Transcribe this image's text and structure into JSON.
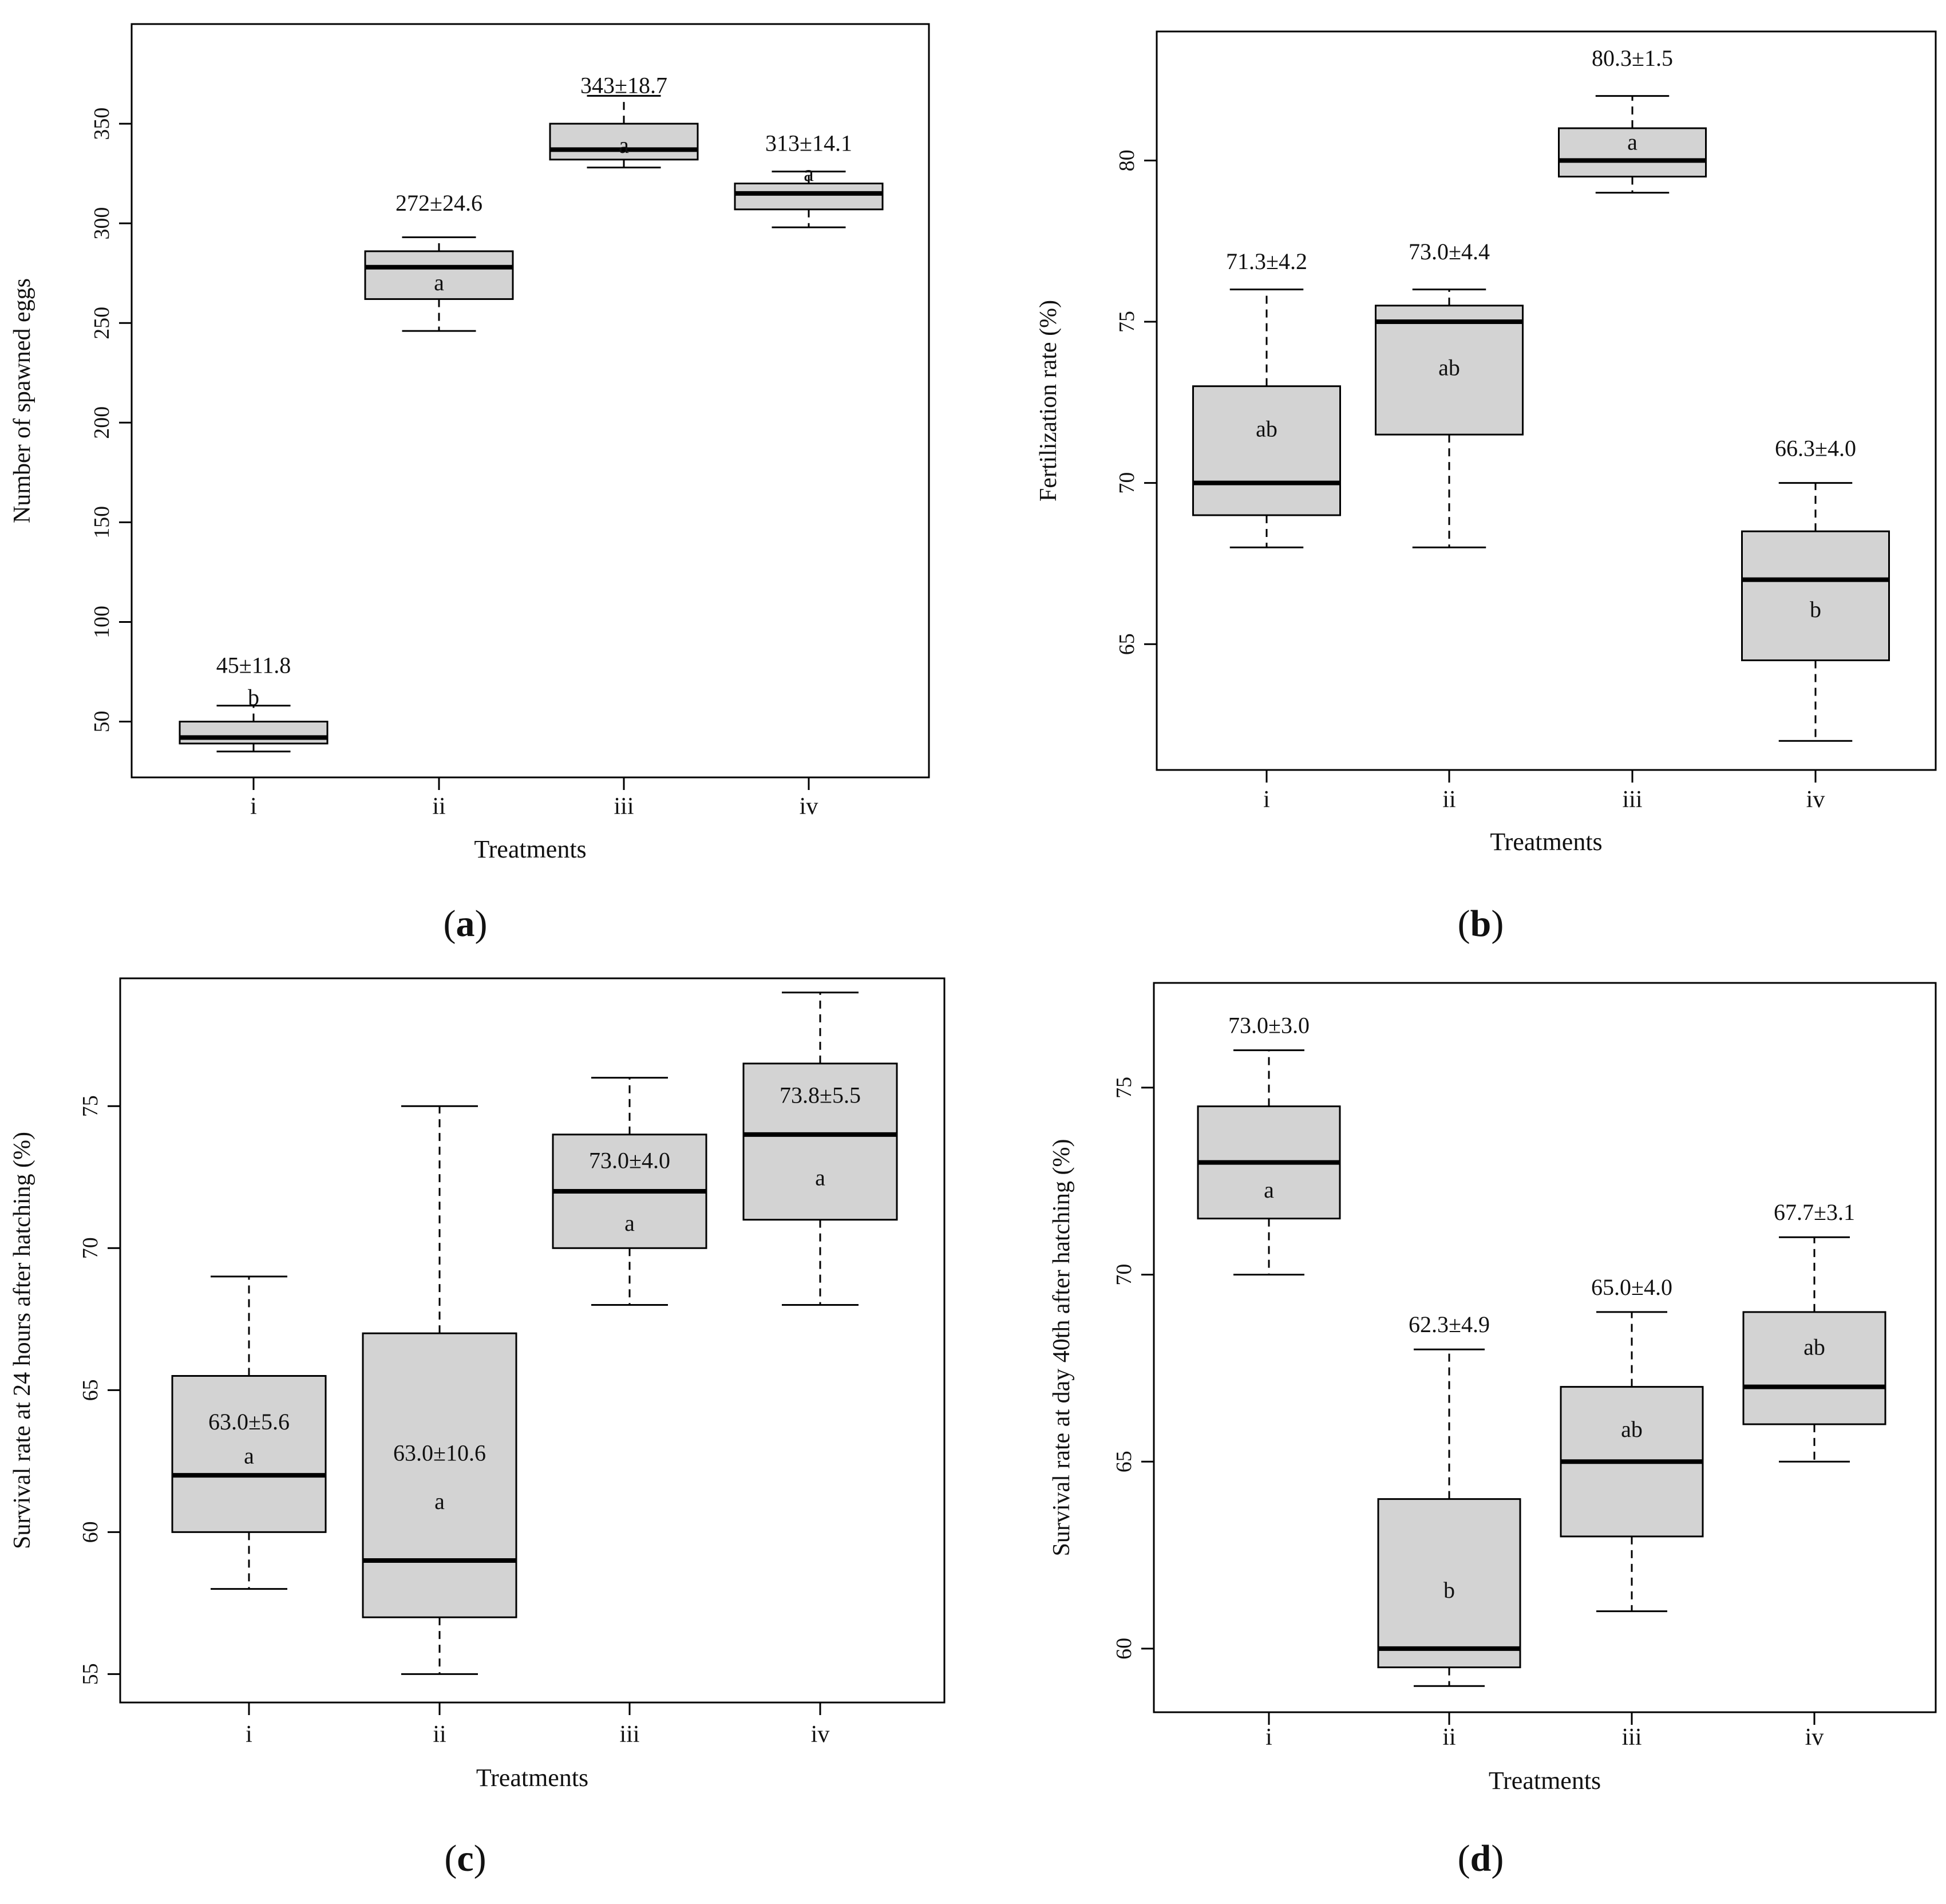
{
  "figure": {
    "panels": [
      {
        "panel_label": "(a)",
        "panel_letter": "a",
        "chart_data": {
          "type": "box",
          "xlabel": "Treatments",
          "ylabel": "Number of spawned eggs",
          "categories": [
            "i",
            "ii",
            "iii",
            "iv"
          ],
          "ylim": [
            22,
            400
          ],
          "yticks": [
            50,
            100,
            150,
            200,
            250,
            300,
            350
          ],
          "boxes": [
            {
              "category": "i",
              "whisker_low": 35,
              "q1": 39,
              "median": 42,
              "q3": 50,
              "whisker_high": 58,
              "mean_sd": "45±11.8",
              "letter": "b",
              "mean_sd_at": 77,
              "letter_at": 61
            },
            {
              "category": "ii",
              "whisker_low": 246,
              "q1": 262,
              "median": 278,
              "q3": 286,
              "whisker_high": 293,
              "mean_sd": "272±24.6",
              "letter": "a",
              "mean_sd_at": 309,
              "letter_at": 269
            },
            {
              "category": "iii",
              "whisker_low": 328,
              "q1": 332,
              "median": 337,
              "q3": 350,
              "whisker_high": 364,
              "mean_sd": "343±18.7",
              "letter": "a",
              "mean_sd_at": 368,
              "letter_at": 338
            },
            {
              "category": "iv",
              "whisker_low": 298,
              "q1": 307,
              "median": 315,
              "q3": 320,
              "whisker_high": 326,
              "mean_sd": "313±14.1",
              "letter": "a",
              "mean_sd_at": 339,
              "letter_at": 324
            }
          ]
        }
      },
      {
        "panel_label": "(b)",
        "panel_letter": "b",
        "chart_data": {
          "type": "box",
          "xlabel": "Treatments",
          "ylabel": "Fertilization rate (%)",
          "categories": [
            "i",
            "ii",
            "iii",
            "iv"
          ],
          "ylim": [
            61.1,
            84
          ],
          "yticks": [
            65,
            70,
            75,
            80
          ],
          "boxes": [
            {
              "category": "i",
              "whisker_low": 68,
              "q1": 69,
              "median": 70,
              "q3": 73,
              "whisker_high": 76,
              "mean_sd": "71.3±4.2",
              "letter": "ab",
              "mean_sd_at": 76.8,
              "letter_at": 71.6
            },
            {
              "category": "ii",
              "whisker_low": 68,
              "q1": 71.5,
              "median": 75,
              "q3": 75.5,
              "whisker_high": 76,
              "mean_sd": "73.0±4.4",
              "letter": "ab",
              "mean_sd_at": 77.1,
              "letter_at": 73.5
            },
            {
              "category": "iii",
              "whisker_low": 79,
              "q1": 79.5,
              "median": 80,
              "q3": 81,
              "whisker_high": 82,
              "mean_sd": "80.3±1.5",
              "letter": "a",
              "mean_sd_at": 83.1,
              "letter_at": 80.5
            },
            {
              "category": "iv",
              "whisker_low": 62,
              "q1": 64.5,
              "median": 67,
              "q3": 68.5,
              "whisker_high": 70,
              "mean_sd": "66.3±4.0",
              "letter": "b",
              "mean_sd_at": 71.0,
              "letter_at": 66.0
            }
          ]
        }
      },
      {
        "panel_label": "(c)",
        "panel_letter": "c",
        "chart_data": {
          "type": "box",
          "xlabel": "Treatments",
          "ylabel": "Survival rate at 24 hours after hatching (%)",
          "categories": [
            "i",
            "ii",
            "iii",
            "iv"
          ],
          "ylim": [
            54.0,
            79.5
          ],
          "yticks": [
            55,
            60,
            65,
            70,
            75
          ],
          "boxes": [
            {
              "category": "i",
              "whisker_low": 58,
              "q1": 60,
              "median": 62,
              "q3": 65.5,
              "whisker_high": 69,
              "mean_sd": "63.0±5.6",
              "letter": "a",
              "mean_sd_at": 63.8,
              "letter_at": 62.6
            },
            {
              "category": "ii",
              "whisker_low": 55,
              "q1": 57,
              "median": 59,
              "q3": 67,
              "whisker_high": 75,
              "mean_sd": "63.0±10.6",
              "letter": "a",
              "mean_sd_at": 62.7,
              "letter_at": 61.0
            },
            {
              "category": "iii",
              "whisker_low": 68,
              "q1": 70,
              "median": 72,
              "q3": 74,
              "whisker_high": 76,
              "mean_sd": "73.0±4.0",
              "letter": "a",
              "mean_sd_at": 73.0,
              "letter_at": 70.8
            },
            {
              "category": "iv",
              "whisker_low": 68,
              "q1": 71,
              "median": 74,
              "q3": 76.5,
              "whisker_high": 79,
              "mean_sd": "73.8±5.5",
              "letter": "a",
              "mean_sd_at": 75.3,
              "letter_at": 72.4
            }
          ]
        }
      },
      {
        "panel_label": "(d)",
        "panel_letter": "d",
        "chart_data": {
          "type": "box",
          "xlabel": "Treatments",
          "ylabel": "Survival rate at day 40th after hatching (%)",
          "categories": [
            "i",
            "ii",
            "iii",
            "iv"
          ],
          "ylim": [
            58.3,
            77.8
          ],
          "yticks": [
            60,
            65,
            70,
            75
          ],
          "boxes": [
            {
              "category": "i",
              "whisker_low": 70,
              "q1": 71.5,
              "median": 73,
              "q3": 74.5,
              "whisker_high": 76,
              "mean_sd": "73.0±3.0",
              "letter": "a",
              "mean_sd_at": 76.6,
              "letter_at": 72.2
            },
            {
              "category": "ii",
              "whisker_low": 59,
              "q1": 59.5,
              "median": 60,
              "q3": 64,
              "whisker_high": 68,
              "mean_sd": "62.3±4.9",
              "letter": "b",
              "mean_sd_at": 68.6,
              "letter_at": 61.5
            },
            {
              "category": "iii",
              "whisker_low": 61,
              "q1": 63,
              "median": 65,
              "q3": 67,
              "whisker_high": 69,
              "mean_sd": "65.0±4.0",
              "letter": "ab",
              "mean_sd_at": 69.6,
              "letter_at": 65.8
            },
            {
              "category": "iv",
              "whisker_low": 65,
              "q1": 66,
              "median": 67,
              "q3": 69,
              "whisker_high": 71,
              "mean_sd": "67.7±3.1",
              "letter": "ab",
              "mean_sd_at": 71.6,
              "letter_at": 68.0
            }
          ]
        }
      }
    ]
  },
  "style": {
    "box_fill": "#d3d3d3",
    "line_color": "#000000",
    "background": "#ffffff"
  }
}
